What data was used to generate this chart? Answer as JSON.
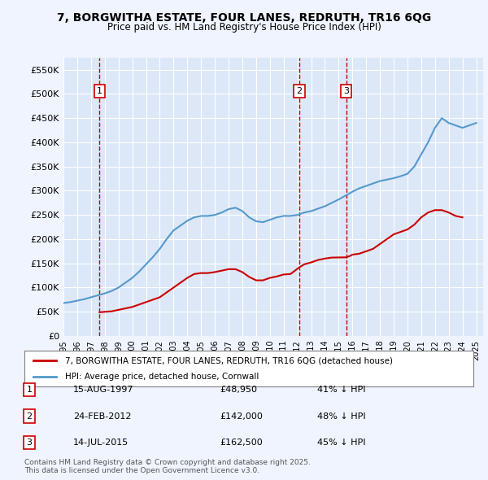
{
  "title": "7, BORGWITHA ESTATE, FOUR LANES, REDRUTH, TR16 6QG",
  "subtitle": "Price paid vs. HM Land Registry's House Price Index (HPI)",
  "background_color": "#f0f4ff",
  "plot_bg_color": "#dce8f8",
  "ylim": [
    0,
    575000
  ],
  "yticks": [
    0,
    50000,
    100000,
    150000,
    200000,
    250000,
    300000,
    350000,
    400000,
    450000,
    500000,
    550000
  ],
  "ytick_labels": [
    "£0",
    "£50K",
    "£100K",
    "£150K",
    "£200K",
    "£250K",
    "£300K",
    "£350K",
    "£400K",
    "£450K",
    "£500K",
    "£550K"
  ],
  "sale_dates": [
    "1997-08-15",
    "2012-02-24",
    "2015-07-14"
  ],
  "sale_prices": [
    48950,
    142000,
    162500
  ],
  "sale_labels": [
    "1",
    "2",
    "3"
  ],
  "sale_pct": [
    "41% ↓ HPI",
    "48% ↓ HPI",
    "45% ↓ HPI"
  ],
  "sale_date_str": [
    "15-AUG-1997",
    "24-FEB-2012",
    "14-JUL-2015"
  ],
  "vline_color": "#cc0000",
  "red_line_color": "#cc0000",
  "blue_line_color": "#5599cc",
  "legend_label_red": "7, BORGWITHA ESTATE, FOUR LANES, REDRUTH, TR16 6QG (detached house)",
  "legend_label_blue": "HPI: Average price, detached house, Cornwall",
  "footer": "Contains HM Land Registry data © Crown copyright and database right 2025.\nThis data is licensed under the Open Government Licence v3.0.",
  "hpi_years": [
    1995,
    1995.5,
    1996,
    1996.5,
    1997,
    1997.5,
    1998,
    1998.5,
    1999,
    1999.5,
    2000,
    2000.5,
    2001,
    2001.5,
    2002,
    2002.5,
    2003,
    2003.5,
    2004,
    2004.5,
    2005,
    2005.5,
    2006,
    2006.5,
    2007,
    2007.5,
    2008,
    2008.5,
    2009,
    2009.5,
    2010,
    2010.5,
    2011,
    2011.5,
    2012,
    2012.5,
    2013,
    2013.5,
    2014,
    2014.5,
    2015,
    2015.5,
    2016,
    2016.5,
    2017,
    2017.5,
    2018,
    2018.5,
    2019,
    2019.5,
    2020,
    2020.5,
    2021,
    2021.5,
    2022,
    2022.5,
    2023,
    2023.5,
    2024,
    2024.5,
    2025
  ],
  "hpi_values": [
    68000,
    70000,
    73000,
    76000,
    80000,
    84000,
    88000,
    93000,
    100000,
    110000,
    120000,
    133000,
    148000,
    163000,
    180000,
    200000,
    218000,
    228000,
    238000,
    245000,
    248000,
    248000,
    250000,
    255000,
    262000,
    265000,
    258000,
    245000,
    237000,
    235000,
    240000,
    245000,
    248000,
    248000,
    250000,
    255000,
    258000,
    263000,
    268000,
    275000,
    282000,
    290000,
    298000,
    305000,
    310000,
    315000,
    320000,
    323000,
    326000,
    330000,
    335000,
    350000,
    375000,
    400000,
    430000,
    450000,
    440000,
    435000,
    430000,
    435000,
    440000
  ],
  "red_years": [
    1997.62,
    1998,
    1998.5,
    1999,
    1999.5,
    2000,
    2000.5,
    2001,
    2001.5,
    2002,
    2002.5,
    2003,
    2003.5,
    2004,
    2004.5,
    2005,
    2005.5,
    2006,
    2006.5,
    2007,
    2007.5,
    2008,
    2008.5,
    2009,
    2009.5,
    2010,
    2010.5,
    2011,
    2011.5,
    2012.15,
    2012.5,
    2013,
    2013.5,
    2014,
    2014.5,
    2015.54,
    2015.8,
    2016,
    2016.5,
    2017,
    2017.5,
    2018,
    2018.5,
    2019,
    2019.5,
    2020,
    2020.5,
    2021,
    2021.5,
    2022,
    2022.5,
    2023,
    2023.5,
    2024
  ],
  "red_values": [
    48950,
    50000,
    51000,
    54000,
    57000,
    60000,
    65000,
    70000,
    75000,
    80000,
    90000,
    100000,
    110000,
    120000,
    128000,
    130000,
    130000,
    132000,
    135000,
    138000,
    138000,
    132000,
    122000,
    115000,
    115000,
    120000,
    123000,
    127000,
    128000,
    142000,
    148000,
    152000,
    157000,
    160000,
    162000,
    162500,
    165000,
    168000,
    170000,
    175000,
    180000,
    190000,
    200000,
    210000,
    215000,
    220000,
    230000,
    245000,
    255000,
    260000,
    260000,
    255000,
    248000,
    245000
  ]
}
